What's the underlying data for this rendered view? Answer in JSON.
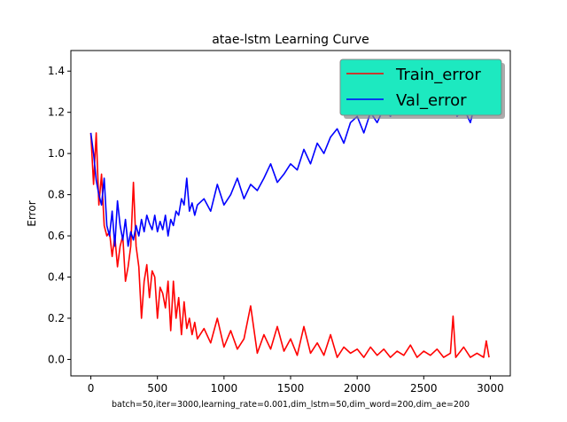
{
  "chart_data": {
    "type": "line",
    "title": "atae-lstm Learning Curve",
    "xlabel": "batch=50,iter=3000,learning_rate=0.001,dim_lstm=50,dim_word=200,dim_ae=200",
    "ylabel": "Error",
    "xlim": [
      -150,
      3150
    ],
    "ylim": [
      -0.08,
      1.5
    ],
    "xticks": [
      0,
      500,
      1000,
      1500,
      2000,
      2500,
      3000
    ],
    "yticks": [
      0.0,
      0.2,
      0.4,
      0.6,
      0.8,
      1.0,
      1.2,
      1.4
    ],
    "legend_position": "upper right",
    "legend_bg": "#1de9c0",
    "series": [
      {
        "name": "Train_error",
        "color": "#ff0000",
        "x": [
          0,
          20,
          40,
          60,
          80,
          100,
          120,
          140,
          160,
          180,
          200,
          220,
          240,
          260,
          280,
          300,
          320,
          340,
          360,
          380,
          400,
          420,
          440,
          460,
          480,
          500,
          520,
          540,
          560,
          580,
          600,
          620,
          640,
          660,
          680,
          700,
          720,
          740,
          760,
          780,
          800,
          850,
          900,
          950,
          1000,
          1050,
          1100,
          1150,
          1200,
          1250,
          1300,
          1350,
          1400,
          1450,
          1500,
          1550,
          1600,
          1650,
          1700,
          1750,
          1800,
          1850,
          1900,
          1950,
          2000,
          2050,
          2100,
          2150,
          2200,
          2250,
          2300,
          2350,
          2400,
          2450,
          2500,
          2550,
          2600,
          2650,
          2700,
          2720,
          2740,
          2800,
          2850,
          2900,
          2950,
          2970,
          2990
        ],
        "values": [
          1.1,
          0.85,
          1.1,
          0.75,
          0.9,
          0.65,
          0.6,
          0.62,
          0.5,
          0.6,
          0.45,
          0.55,
          0.6,
          0.38,
          0.45,
          0.55,
          0.86,
          0.55,
          0.45,
          0.2,
          0.38,
          0.46,
          0.3,
          0.43,
          0.4,
          0.2,
          0.35,
          0.32,
          0.25,
          0.38,
          0.14,
          0.38,
          0.2,
          0.3,
          0.12,
          0.28,
          0.15,
          0.2,
          0.12,
          0.18,
          0.1,
          0.15,
          0.08,
          0.2,
          0.06,
          0.14,
          0.05,
          0.1,
          0.26,
          0.03,
          0.12,
          0.05,
          0.16,
          0.04,
          0.1,
          0.02,
          0.16,
          0.03,
          0.08,
          0.02,
          0.12,
          0.01,
          0.06,
          0.03,
          0.05,
          0.01,
          0.06,
          0.02,
          0.05,
          0.01,
          0.04,
          0.02,
          0.07,
          0.01,
          0.04,
          0.02,
          0.05,
          0.01,
          0.03,
          0.21,
          0.01,
          0.06,
          0.01,
          0.03,
          0.01,
          0.09,
          0.01
        ]
      },
      {
        "name": "Val_error",
        "color": "#0000ff",
        "x": [
          0,
          20,
          40,
          60,
          80,
          100,
          120,
          140,
          160,
          180,
          200,
          220,
          240,
          260,
          280,
          300,
          320,
          340,
          360,
          380,
          400,
          420,
          440,
          460,
          480,
          500,
          520,
          540,
          560,
          580,
          600,
          620,
          640,
          660,
          680,
          700,
          720,
          740,
          760,
          780,
          800,
          850,
          900,
          950,
          1000,
          1050,
          1100,
          1150,
          1200,
          1250,
          1300,
          1350,
          1400,
          1450,
          1500,
          1550,
          1600,
          1650,
          1700,
          1750,
          1800,
          1850,
          1900,
          1950,
          2000,
          2050,
          2100,
          2150,
          2200,
          2250,
          2300,
          2350,
          2400,
          2450,
          2500,
          2550,
          2600,
          2650,
          2700,
          2750,
          2800,
          2850,
          2900,
          2950,
          2990
        ],
        "values": [
          1.1,
          1.0,
          0.87,
          0.8,
          0.75,
          0.88,
          0.65,
          0.6,
          0.72,
          0.55,
          0.77,
          0.65,
          0.58,
          0.68,
          0.55,
          0.62,
          0.58,
          0.65,
          0.6,
          0.68,
          0.62,
          0.7,
          0.66,
          0.63,
          0.7,
          0.62,
          0.67,
          0.63,
          0.7,
          0.6,
          0.68,
          0.65,
          0.72,
          0.7,
          0.78,
          0.75,
          0.88,
          0.72,
          0.76,
          0.7,
          0.75,
          0.78,
          0.72,
          0.85,
          0.75,
          0.8,
          0.88,
          0.78,
          0.85,
          0.82,
          0.88,
          0.95,
          0.86,
          0.9,
          0.95,
          0.92,
          1.02,
          0.95,
          1.05,
          1.0,
          1.08,
          1.12,
          1.05,
          1.15,
          1.18,
          1.1,
          1.2,
          1.15,
          1.22,
          1.18,
          1.25,
          1.2,
          1.28,
          1.22,
          1.3,
          1.25,
          1.32,
          1.2,
          1.28,
          1.18,
          1.22,
          1.15,
          1.28,
          1.22,
          1.28
        ]
      }
    ]
  }
}
